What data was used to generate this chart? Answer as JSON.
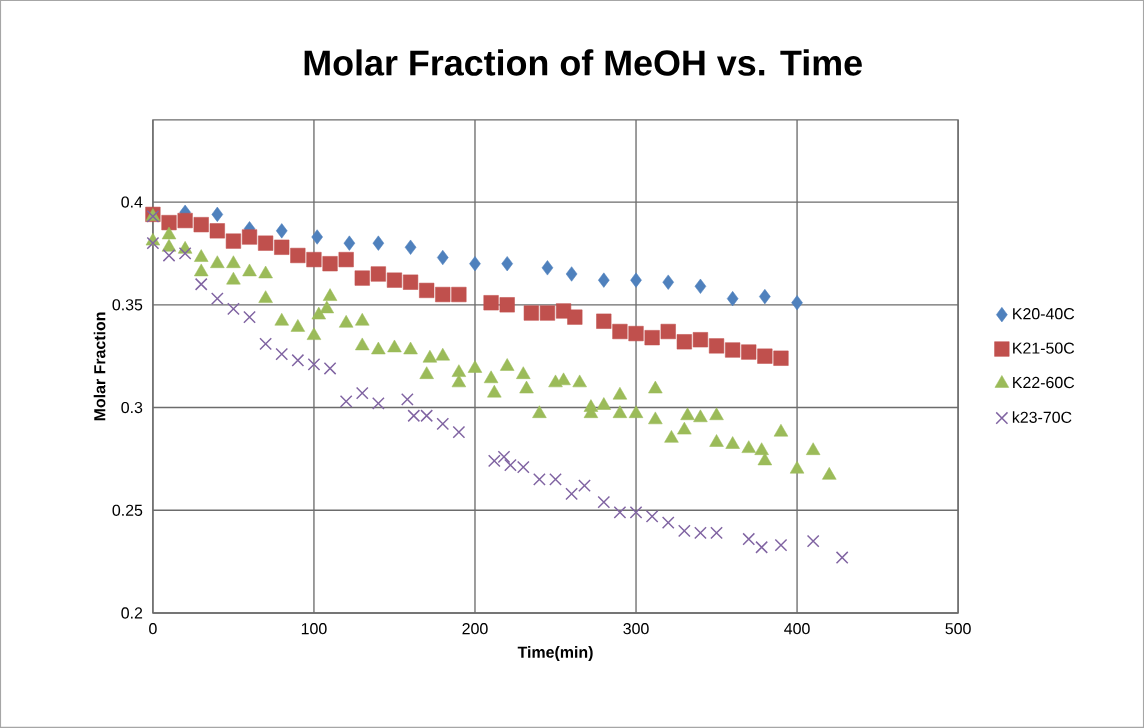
{
  "chart_data": {
    "type": "scatter",
    "title": "Molar Fraction of MeOH vs. Time",
    "xlabel": "Time(min)",
    "ylabel": "Molar Fraction",
    "xlim": [
      0,
      500
    ],
    "ylim": [
      0.2,
      0.44
    ],
    "xticks": [
      0,
      100,
      200,
      300,
      400,
      500
    ],
    "yticks": [
      0.2,
      0.25,
      0.3,
      0.35,
      0.4
    ],
    "grid": true,
    "legend": "right",
    "series": [
      {
        "name": "K20-40C",
        "color": "#4f81bd",
        "marker": "diamond",
        "x": [
          20,
          40,
          60,
          80,
          102,
          122,
          140,
          160,
          180,
          200,
          220,
          245,
          260,
          280,
          300,
          320,
          340,
          360,
          380,
          400
        ],
        "values": [
          0.395,
          0.394,
          0.387,
          0.386,
          0.383,
          0.38,
          0.38,
          0.378,
          0.373,
          0.37,
          0.37,
          0.368,
          0.365,
          0.362,
          0.362,
          0.361,
          0.359,
          0.353,
          0.354,
          0.351
        ]
      },
      {
        "name": "K21-50C",
        "color": "#c0504d",
        "marker": "square",
        "x": [
          0,
          10,
          20,
          30,
          40,
          50,
          60,
          70,
          80,
          90,
          100,
          110,
          120,
          130,
          140,
          150,
          160,
          170,
          180,
          190,
          210,
          220,
          235,
          245,
          255,
          262,
          280,
          290,
          300,
          310,
          320,
          330,
          340,
          350,
          360,
          370,
          380,
          390
        ],
        "values": [
          0.394,
          0.39,
          0.391,
          0.389,
          0.386,
          0.381,
          0.383,
          0.38,
          0.378,
          0.374,
          0.372,
          0.37,
          0.372,
          0.363,
          0.365,
          0.362,
          0.361,
          0.357,
          0.355,
          0.355,
          0.351,
          0.35,
          0.346,
          0.346,
          0.347,
          0.344,
          0.342,
          0.337,
          0.336,
          0.334,
          0.337,
          0.332,
          0.333,
          0.33,
          0.328,
          0.327,
          0.325,
          0.324
        ]
      },
      {
        "name": "K22-60C",
        "color": "#9bbb59",
        "marker": "triangle",
        "x": [
          0,
          0,
          10,
          10,
          20,
          30,
          30,
          40,
          50,
          50,
          60,
          70,
          70,
          80,
          90,
          100,
          103,
          108,
          110,
          120,
          130,
          130,
          140,
          150,
          160,
          170,
          172,
          180,
          190,
          190,
          200,
          210,
          212,
          220,
          230,
          232,
          240,
          250,
          255,
          265,
          272,
          272,
          280,
          290,
          290,
          300,
          312,
          312,
          322,
          330,
          332,
          340,
          350,
          350,
          360,
          370,
          378,
          380,
          390,
          400,
          410,
          420
        ],
        "values": [
          0.393,
          0.381,
          0.384,
          0.378,
          0.377,
          0.373,
          0.366,
          0.37,
          0.37,
          0.362,
          0.366,
          0.365,
          0.353,
          0.342,
          0.339,
          0.335,
          0.345,
          0.348,
          0.354,
          0.341,
          0.342,
          0.33,
          0.328,
          0.329,
          0.328,
          0.316,
          0.324,
          0.325,
          0.317,
          0.312,
          0.319,
          0.314,
          0.307,
          0.32,
          0.316,
          0.309,
          0.297,
          0.312,
          0.313,
          0.312,
          0.3,
          0.297,
          0.301,
          0.306,
          0.297,
          0.297,
          0.309,
          0.294,
          0.285,
          0.289,
          0.296,
          0.295,
          0.296,
          0.283,
          0.282,
          0.28,
          0.279,
          0.274,
          0.288,
          0.27,
          0.279,
          0.267
        ]
      },
      {
        "name": "k23-70C",
        "color": "#8064a2",
        "marker": "cross",
        "x": [
          0,
          0,
          10,
          20,
          30,
          40,
          50,
          60,
          70,
          80,
          90,
          100,
          110,
          120,
          130,
          140,
          158,
          162,
          170,
          180,
          190,
          212,
          218,
          222,
          230,
          240,
          250,
          260,
          268,
          280,
          290,
          300,
          310,
          320,
          330,
          340,
          350,
          370,
          378,
          390,
          410,
          428
        ],
        "values": [
          0.393,
          0.38,
          0.374,
          0.375,
          0.36,
          0.353,
          0.348,
          0.344,
          0.331,
          0.326,
          0.323,
          0.321,
          0.319,
          0.303,
          0.307,
          0.302,
          0.304,
          0.296,
          0.296,
          0.292,
          0.288,
          0.274,
          0.276,
          0.272,
          0.271,
          0.265,
          0.265,
          0.258,
          0.262,
          0.254,
          0.249,
          0.249,
          0.247,
          0.244,
          0.24,
          0.239,
          0.239,
          0.236,
          0.232,
          0.233,
          0.235,
          0.227
        ]
      }
    ]
  }
}
